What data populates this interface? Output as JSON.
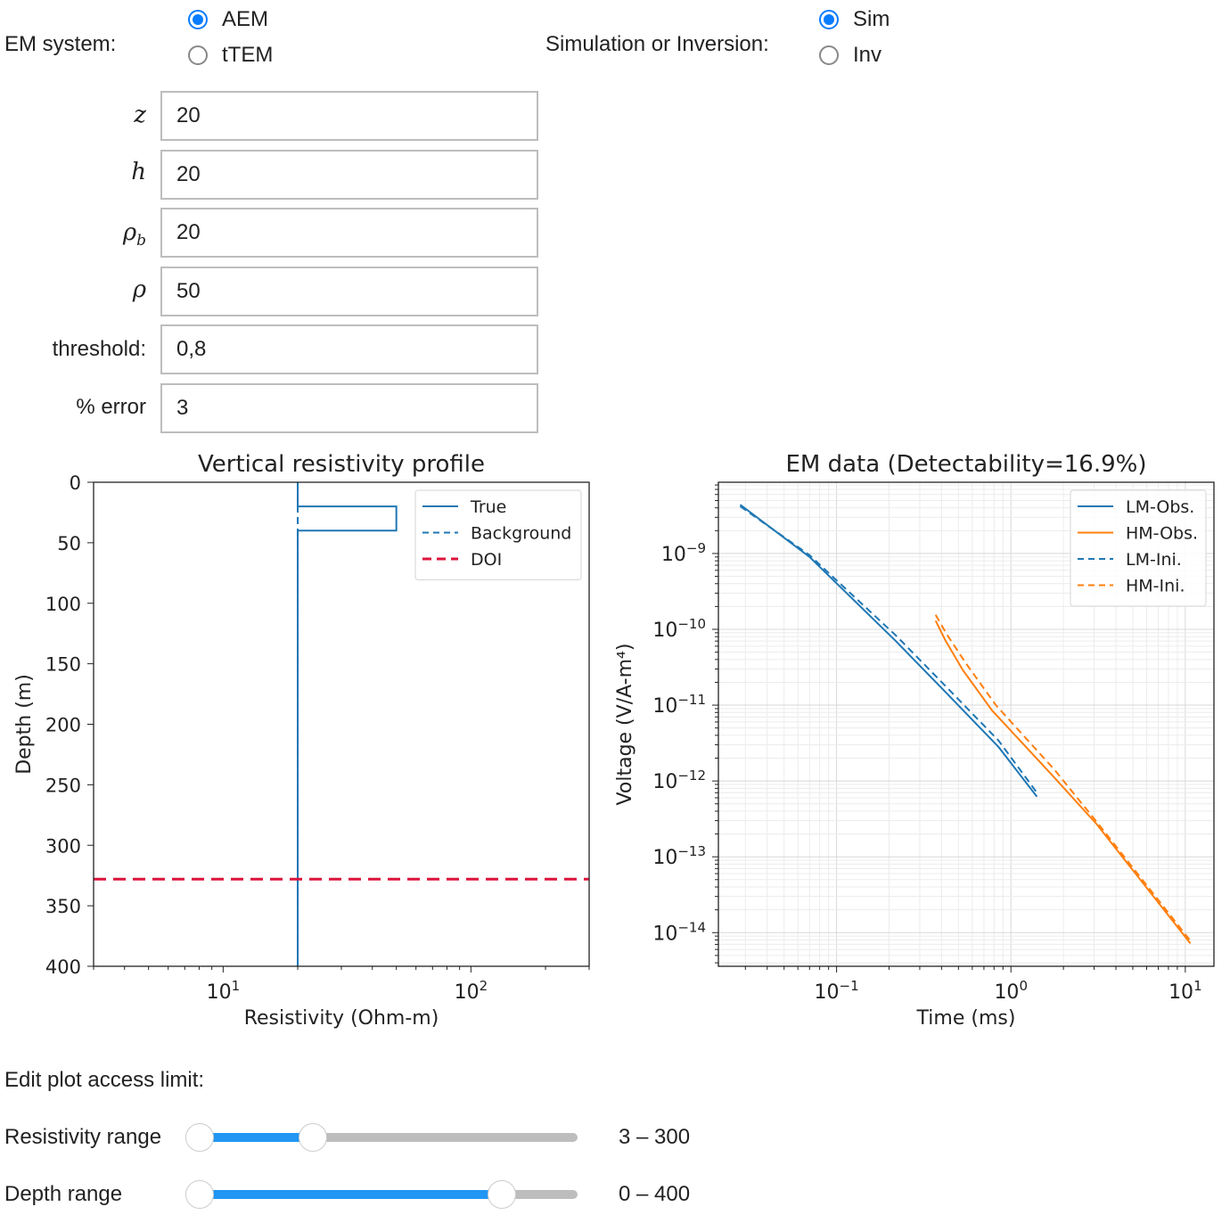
{
  "em_system": {
    "label": "EM system:",
    "options": [
      "AEM",
      "tTEM"
    ],
    "selected": "AEM"
  },
  "mode": {
    "label": "Simulation or Inversion:",
    "options": [
      "Sim",
      "Inv"
    ],
    "selected": "Sim"
  },
  "fields": [
    {
      "label": "z",
      "math": true,
      "value": "20"
    },
    {
      "label": "h",
      "math": true,
      "value": "20"
    },
    {
      "label": "ρ",
      "sub": "b",
      "math": true,
      "value": "20"
    },
    {
      "label": "ρ",
      "math": true,
      "value": "50"
    },
    {
      "label": "threshold:",
      "math": false,
      "value": "0,8"
    },
    {
      "label": "% error",
      "math": false,
      "value": "3"
    }
  ],
  "colors": {
    "accent": "#0a7cff",
    "slider_fill": "#2196f3",
    "blue": "#1f77b4",
    "orange": "#ff7f0e",
    "doi": "#dc143c"
  },
  "chart_data": [
    {
      "type": "line",
      "title": "Vertical resistivity profile",
      "xlabel": "Resistivity (Ohm-m)",
      "ylabel": "Depth (m)",
      "xscale": "log",
      "xlim": [
        3,
        300
      ],
      "ylim": [
        400,
        0
      ],
      "xticks": [
        {
          "v": 10,
          "base": "10",
          "exp": "1"
        },
        {
          "v": 100,
          "base": "10",
          "exp": "2"
        }
      ],
      "yticks": [
        "0",
        "50",
        "100",
        "150",
        "200",
        "250",
        "300",
        "350",
        "400"
      ],
      "grid": false,
      "legend_position": "top-right",
      "series": [
        {
          "name": "True",
          "style": "solid",
          "color": "#1f77b4",
          "x": [
            20,
            20,
            50,
            50,
            20,
            20
          ],
          "y": [
            0,
            20,
            20,
            40,
            40,
            400
          ]
        },
        {
          "name": "Background",
          "style": "dashed",
          "color": "#1f77b4",
          "x": [
            20,
            20
          ],
          "y": [
            0,
            400
          ]
        },
        {
          "name": "DOI",
          "style": "dashed",
          "color": "#dc143c",
          "x": [
            3,
            300
          ],
          "y": [
            328,
            328
          ]
        }
      ]
    },
    {
      "type": "line",
      "title": "EM data (Detectability=16.9%)",
      "xlabel": "Time (ms)",
      "ylabel": "Voltage (V/A-m⁴)",
      "xscale": "log",
      "yscale": "log",
      "xlim": [
        0.021,
        14.6
      ],
      "ylim": [
        3.6e-15,
        8.7e-09
      ],
      "xticks": [
        {
          "v": 0.1,
          "base": "10",
          "exp": "−1"
        },
        {
          "v": 1,
          "base": "10",
          "exp": "0"
        },
        {
          "v": 10,
          "base": "10",
          "exp": "1"
        }
      ],
      "yticks": [
        {
          "v": 1e-09,
          "base": "10",
          "exp": "−9"
        },
        {
          "v": 1e-10,
          "base": "10",
          "exp": "−10"
        },
        {
          "v": 1e-11,
          "base": "10",
          "exp": "−11"
        },
        {
          "v": 1e-12,
          "base": "10",
          "exp": "−12"
        },
        {
          "v": 1e-13,
          "base": "10",
          "exp": "−13"
        },
        {
          "v": 1e-14,
          "base": "10",
          "exp": "−14"
        }
      ],
      "grid": true,
      "legend_position": "top-right",
      "series": [
        {
          "name": "LM-Obs.",
          "style": "solid",
          "color": "#1f77b4",
          "x": [
            0.028,
            0.07,
            0.22,
            0.42,
            0.85,
            1.41
          ],
          "y": [
            4.4e-09,
            9e-10,
            6.9e-11,
            1.5e-11,
            2.8e-12,
            6.2e-13
          ]
        },
        {
          "name": "HM-Obs.",
          "style": "solid",
          "color": "#ff7f0e",
          "x": [
            0.37,
            0.42,
            0.53,
            0.78,
            1.72,
            3.1,
            10.7
          ],
          "y": [
            1.3e-10,
            7.2e-11,
            2.9e-11,
            8.5e-12,
            1.2e-12,
            2.7e-13,
            7.2e-15
          ]
        },
        {
          "name": "LM-Ini.",
          "style": "dashed",
          "color": "#1f77b4",
          "x": [
            0.028,
            0.07,
            0.22,
            0.42,
            0.85,
            1.41
          ],
          "y": [
            4.2e-09,
            9.5e-10,
            8.2e-11,
            1.8e-11,
            3.4e-12,
            7e-13
          ]
        },
        {
          "name": "HM-Ini.",
          "style": "dashed",
          "color": "#ff7f0e",
          "x": [
            0.37,
            0.43,
            0.55,
            0.82,
            1.78,
            3.1,
            10.7
          ],
          "y": [
            1.55e-10,
            8.5e-11,
            3.6e-11,
            1e-11,
            1.4e-12,
            2.9e-13,
            7.8e-15
          ]
        }
      ]
    }
  ],
  "limits": {
    "heading": "Edit plot access limit:",
    "sliders": [
      {
        "label": "Resistivity range",
        "low": 0.0,
        "high": 0.3,
        "readout": "3 – 300"
      },
      {
        "label": "Depth range",
        "low": 0.0,
        "high": 0.8,
        "readout": "0 – 400"
      }
    ]
  }
}
